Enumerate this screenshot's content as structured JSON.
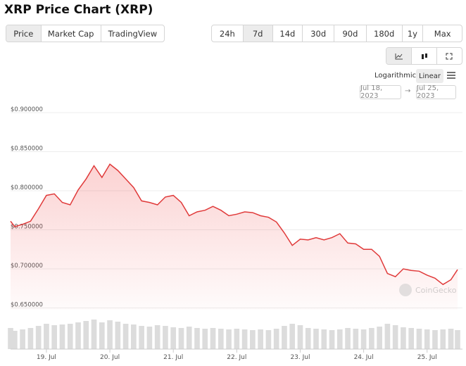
{
  "chart_data": {
    "type": "line",
    "title": "XRP Price Chart (XRP)",
    "x": [
      18.435,
      18.5,
      18.625,
      18.75,
      18.875,
      19.0,
      19.125,
      19.25,
      19.375,
      19.5,
      19.625,
      19.75,
      19.875,
      20.0,
      20.125,
      20.25,
      20.375,
      20.5,
      20.625,
      20.75,
      20.875,
      21.0,
      21.125,
      21.25,
      21.375,
      21.5,
      21.625,
      21.75,
      21.875,
      22.0,
      22.125,
      22.25,
      22.375,
      22.5,
      22.625,
      22.75,
      22.875,
      23.0,
      23.125,
      23.25,
      23.375,
      23.5,
      23.625,
      23.75,
      23.875,
      24.0,
      24.125,
      24.25,
      24.375,
      24.5,
      24.625,
      24.75,
      24.875,
      25.0,
      25.125,
      25.25,
      25.375,
      25.48
    ],
    "series": [
      {
        "color": "#e03a3a",
        "values": [
          0.761,
          0.754,
          0.757,
          0.761,
          0.777,
          0.794,
          0.796,
          0.785,
          0.782,
          0.801,
          0.815,
          0.832,
          0.817,
          0.834,
          0.826,
          0.815,
          0.804,
          0.787,
          0.785,
          0.782,
          0.792,
          0.794,
          0.785,
          0.768,
          0.773,
          0.775,
          0.78,
          0.775,
          0.768,
          0.77,
          0.773,
          0.772,
          0.768,
          0.766,
          0.76,
          0.746,
          0.73,
          0.738,
          0.737,
          0.74,
          0.737,
          0.74,
          0.745,
          0.733,
          0.732,
          0.725,
          0.725,
          0.716,
          0.694,
          0.69,
          0.7,
          0.698,
          0.697,
          0.692,
          0.688,
          0.68,
          0.686,
          0.699
        ]
      }
    ],
    "volume": {
      "color": "#dcdcdc",
      "values": [
        30,
        26,
        28,
        30,
        33,
        36,
        34,
        35,
        36,
        38,
        40,
        42,
        38,
        41,
        39,
        36,
        35,
        33,
        32,
        34,
        33,
        31,
        30,
        32,
        30,
        29,
        30,
        29,
        28,
        29,
        28,
        27,
        28,
        27,
        29,
        33,
        36,
        34,
        30,
        29,
        28,
        27,
        28,
        30,
        29,
        28,
        30,
        32,
        36,
        34,
        31,
        30,
        29,
        28,
        27,
        28,
        29,
        27
      ]
    },
    "ylim": [
      0.6315,
      0.9
    ],
    "yticks": [
      {
        "value": 0.65,
        "label": "$0.650000"
      },
      {
        "value": 0.7,
        "label": "$0.700000"
      },
      {
        "value": 0.75,
        "label": "$0.750000"
      },
      {
        "value": 0.8,
        "label": "$0.800000"
      },
      {
        "value": 0.85,
        "label": "$0.850000"
      },
      {
        "value": 0.9,
        "label": "$0.900000"
      }
    ],
    "xlim": [
      18.435,
      25.48
    ],
    "xticks": [
      {
        "value": 19,
        "label": "19. Jul"
      },
      {
        "value": 20,
        "label": "20. Jul"
      },
      {
        "value": 21,
        "label": "21. Jul"
      },
      {
        "value": 22,
        "label": "22. Jul"
      },
      {
        "value": 23,
        "label": "23. Jul"
      },
      {
        "value": 24,
        "label": "24. Jul"
      },
      {
        "value": 25,
        "label": "25. Jul"
      }
    ],
    "grid": true
  },
  "ui": {
    "tabs": [
      "Price",
      "Market Cap",
      "TradingView"
    ],
    "ranges": [
      "24h",
      "7d",
      "14d",
      "30d",
      "90d",
      "180d",
      "1y",
      "Max"
    ],
    "scales": [
      "Logarithmic",
      "Linear"
    ],
    "date_from": "Jul 18, 2023",
    "date_sep": "→",
    "date_to": "Jul 25, 2023",
    "watermark": "CoinGecko"
  }
}
